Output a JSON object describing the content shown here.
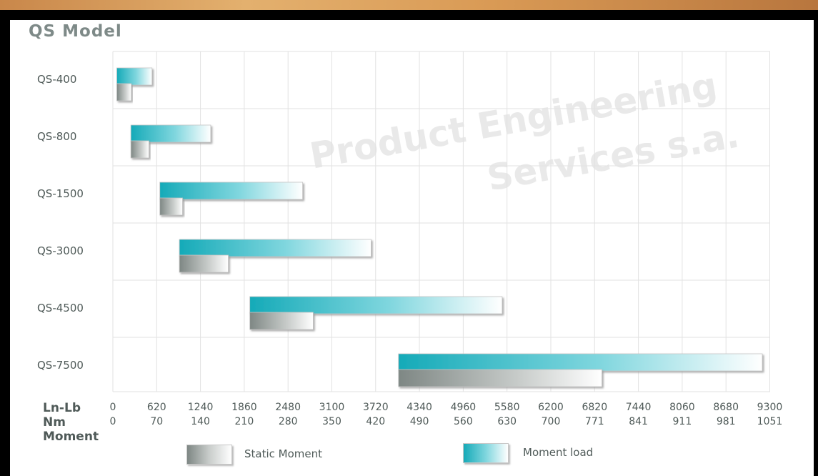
{
  "title": "QS Model",
  "watermark": [
    "Product Engineering",
    "Services s.a."
  ],
  "chart_data": {
    "type": "bar",
    "orientation": "horizontal",
    "categories": [
      "QS-400",
      "QS-800",
      "QS-1500",
      "QS-3000",
      "QS-4500",
      "QS-7500"
    ],
    "series": [
      {
        "name": "Moment load",
        "start": [
          100,
          460,
          1200,
          1700,
          3500,
          7300
        ],
        "end": [
          1000,
          2500,
          4850,
          6600,
          9950,
          16600
        ]
      },
      {
        "name": "Static Moment",
        "start": [
          100,
          460,
          1200,
          1700,
          3500,
          7300
        ],
        "end": [
          470,
          920,
          1780,
          2950,
          5120,
          12500
        ]
      }
    ],
    "x_axes": [
      {
        "label": "Ln-Lb",
        "ticks": [
          "0",
          "620",
          "1240",
          "1860",
          "2480",
          "3100",
          "3720",
          "4340",
          "4960",
          "5580",
          "6200",
          "6820",
          "7440",
          "8060",
          "8680",
          "9300"
        ]
      },
      {
        "label": "Nm",
        "ticks": [
          "0",
          "70",
          "140",
          "210",
          "280",
          "350",
          "420",
          "490",
          "560",
          "630",
          "700",
          "771",
          "841",
          "911",
          "981",
          "1051"
        ]
      }
    ],
    "x_axis_title": "Moment",
    "xlim": [
      0,
      16800
    ],
    "grid": true,
    "legend_position": "bottom",
    "colors": {
      "moment_load": "#1ab2bf",
      "static_moment": "#8a918e"
    }
  },
  "legend": [
    {
      "label": "Static Moment"
    },
    {
      "label": "Moment load"
    }
  ]
}
